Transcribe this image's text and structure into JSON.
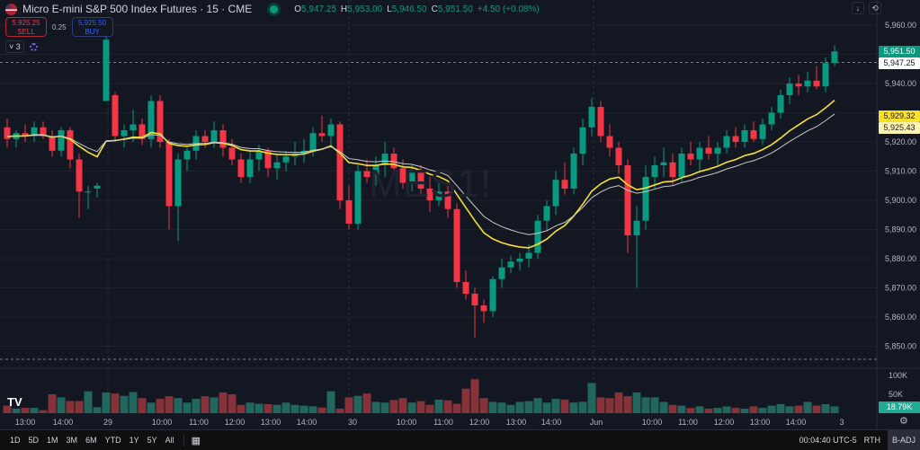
{
  "header": {
    "title": "Micro E-mini S&P 500 Index Futures · 15 · CME",
    "ohlc": {
      "o": "5,947.25",
      "h": "5,953.00",
      "l": "5,946.50",
      "c": "5,951.50",
      "change": "+4.50 (+0.08%)"
    }
  },
  "trade": {
    "sell_price": "5,925.25",
    "sell_label": "SELL",
    "spread": "0.25",
    "buy_price": "5,925.50",
    "buy_label": "BUY"
  },
  "indicators": {
    "count": "3"
  },
  "watermark": "MES1!",
  "price_axis": {
    "labels": [
      "5,960.00",
      "5,940.00",
      "5,920.00",
      "5,910.00",
      "5,900.00",
      "5,890.00",
      "5,880.00",
      "5,870.00",
      "5,860.00",
      "5,850.00"
    ],
    "last": "5,951.50",
    "prev_close": "5,947.25",
    "ma1": "5,929.32",
    "ma2": "5,925.43"
  },
  "volume_axis": {
    "labels": [
      "100K",
      "50K"
    ],
    "last": "18.79K"
  },
  "time_axis": [
    "13:00",
    "14:00",
    "29",
    "10:00",
    "11:00",
    "12:00",
    "13:00",
    "14:00",
    "30",
    "10:00",
    "11:00",
    "12:00",
    "13:00",
    "14:00",
    "Jun",
    "10:00",
    "11:00",
    "12:00",
    "13:00",
    "14:00",
    "3"
  ],
  "colors": {
    "up": "#089981",
    "down": "#f23645",
    "vol_up": "#22675e",
    "vol_down": "#853238",
    "ma1": "#f7e02a",
    "ma2": "#c9c9c9"
  },
  "bottom": {
    "ranges": [
      "1D",
      "5D",
      "1M",
      "3M",
      "6M",
      "YTD",
      "1Y",
      "5Y",
      "All"
    ],
    "clock": "00:04:40 UTC-5",
    "session": "RTH",
    "adj": "B-ADJ"
  },
  "chart_data": {
    "type": "candlestick",
    "ylim": [
      5845,
      5965
    ],
    "columns": [
      "open",
      "high",
      "low",
      "close",
      "volumeK"
    ],
    "candles": [
      [
        5925,
        5928,
        5918,
        5921,
        20
      ],
      [
        5921,
        5924,
        5918,
        5923,
        12
      ],
      [
        5923,
        5926,
        5920,
        5922,
        14
      ],
      [
        5922,
        5927,
        5920,
        5925,
        14
      ],
      [
        5925,
        5927,
        5921,
        5922,
        8
      ],
      [
        5922,
        5924,
        5915,
        5917,
        50
      ],
      [
        5917,
        5925,
        5915,
        5924,
        42
      ],
      [
        5924,
        5925,
        5911,
        5914,
        32
      ],
      [
        5914,
        5916,
        5894,
        5903,
        32
      ],
      [
        5903,
        5905,
        5897,
        5903,
        58
      ],
      [
        5904,
        5906,
        5901,
        5905,
        16
      ],
      [
        5934,
        5962,
        5934,
        5955,
        55
      ],
      [
        5936,
        5937,
        5920,
        5922,
        52
      ],
      [
        5922,
        5926,
        5918,
        5924,
        46
      ],
      [
        5924,
        5931,
        5920,
        5926,
        56
      ],
      [
        5926,
        5928,
        5919,
        5921,
        40
      ],
      [
        5921,
        5936,
        5918,
        5934,
        28
      ],
      [
        5934,
        5936,
        5918,
        5920,
        38
      ],
      [
        5920,
        5921,
        5890,
        5898,
        45
      ],
      [
        5898,
        5916,
        5886,
        5914,
        40
      ],
      [
        5914,
        5918,
        5910,
        5917,
        28
      ],
      [
        5917,
        5924,
        5914,
        5922,
        38
      ],
      [
        5922,
        5924,
        5918,
        5920,
        45
      ],
      [
        5920,
        5927,
        5918,
        5924,
        42
      ],
      [
        5924,
        5926,
        5915,
        5918,
        55
      ],
      [
        5918,
        5921,
        5912,
        5914,
        50
      ],
      [
        5914,
        5916,
        5906,
        5908,
        22
      ],
      [
        5908,
        5917,
        5906,
        5914,
        28
      ],
      [
        5914,
        5919,
        5910,
        5917,
        25
      ],
      [
        5917,
        5918,
        5908,
        5911,
        24
      ],
      [
        5911,
        5916,
        5907,
        5913,
        22
      ],
      [
        5913,
        5917,
        5910,
        5915,
        28
      ],
      [
        5915,
        5920,
        5912,
        5916,
        22
      ],
      [
        5916,
        5921,
        5913,
        5917,
        20
      ],
      [
        5917,
        5925,
        5915,
        5923,
        18
      ],
      [
        5923,
        5929,
        5920,
        5922,
        15
      ],
      [
        5922,
        5928,
        5918,
        5926,
        58
      ],
      [
        5926,
        5927,
        5897,
        5900,
        12
      ],
      [
        5900,
        5905,
        5890,
        5892,
        42
      ],
      [
        5892,
        5912,
        5890,
        5910,
        46
      ],
      [
        5910,
        5914,
        5906,
        5908,
        52
      ],
      [
        5908,
        5915,
        5905,
        5912,
        30
      ],
      [
        5912,
        5920,
        5908,
        5916,
        28
      ],
      [
        5916,
        5918,
        5910,
        5911,
        35
      ],
      [
        5911,
        5914,
        5904,
        5906,
        40
      ],
      [
        5906,
        5912,
        5903,
        5910,
        28
      ],
      [
        5910,
        5912,
        5902,
        5904,
        32
      ],
      [
        5904,
        5908,
        5896,
        5900,
        22
      ],
      [
        5900,
        5906,
        5898,
        5903,
        36
      ],
      [
        5903,
        5905,
        5894,
        5897,
        34
      ],
      [
        5897,
        5899,
        5870,
        5872,
        25
      ],
      [
        5872,
        5876,
        5866,
        5868,
        65
      ],
      [
        5868,
        5870,
        5853,
        5864,
        90
      ],
      [
        5864,
        5866,
        5858,
        5862,
        40
      ],
      [
        5862,
        5874,
        5860,
        5873,
        30
      ],
      [
        5873,
        5880,
        5870,
        5877,
        28
      ],
      [
        5877,
        5881,
        5875,
        5879,
        22
      ],
      [
        5879,
        5882,
        5876,
        5880,
        30
      ],
      [
        5880,
        5885,
        5877,
        5882,
        32
      ],
      [
        5882,
        5895,
        5880,
        5893,
        40
      ],
      [
        5893,
        5900,
        5890,
        5898,
        28
      ],
      [
        5898,
        5910,
        5895,
        5907,
        38
      ],
      [
        5907,
        5913,
        5902,
        5904,
        36
      ],
      [
        5904,
        5918,
        5902,
        5916,
        28
      ],
      [
        5916,
        5928,
        5912,
        5925,
        30
      ],
      [
        5925,
        5935,
        5922,
        5932,
        80
      ],
      [
        5932,
        5934,
        5920,
        5922,
        42
      ],
      [
        5922,
        5926,
        5915,
        5918,
        40
      ],
      [
        5918,
        5920,
        5909,
        5912,
        55
      ],
      [
        5912,
        5914,
        5882,
        5888,
        45
      ],
      [
        5888,
        5898,
        5870,
        5893,
        55
      ],
      [
        5893,
        5912,
        5890,
        5908,
        42
      ],
      [
        5908,
        5915,
        5904,
        5912,
        42
      ],
      [
        5912,
        5918,
        5908,
        5913,
        30
      ],
      [
        5913,
        5916,
        5905,
        5908,
        22
      ],
      [
        5908,
        5918,
        5906,
        5916,
        20
      ],
      [
        5916,
        5920,
        5912,
        5914,
        14
      ],
      [
        5914,
        5920,
        5910,
        5918,
        18
      ],
      [
        5918,
        5922,
        5914,
        5916,
        12
      ],
      [
        5916,
        5920,
        5912,
        5918,
        14
      ],
      [
        5918,
        5924,
        5916,
        5922,
        18
      ],
      [
        5922,
        5925,
        5918,
        5920,
        14
      ],
      [
        5920,
        5926,
        5918,
        5924,
        12
      ],
      [
        5924,
        5927,
        5920,
        5921,
        18
      ],
      [
        5921,
        5928,
        5919,
        5926,
        14
      ],
      [
        5926,
        5932,
        5924,
        5930,
        20
      ],
      [
        5930,
        5938,
        5928,
        5936,
        24
      ],
      [
        5936,
        5942,
        5933,
        5940,
        18
      ],
      [
        5940,
        5943,
        5936,
        5939,
        20
      ],
      [
        5939,
        5944,
        5937,
        5941,
        30
      ],
      [
        5941,
        5946,
        5938,
        5939,
        20
      ],
      [
        5939,
        5949,
        5937,
        5947,
        24
      ],
      [
        5947,
        5953,
        5946,
        5951,
        18
      ]
    ]
  }
}
